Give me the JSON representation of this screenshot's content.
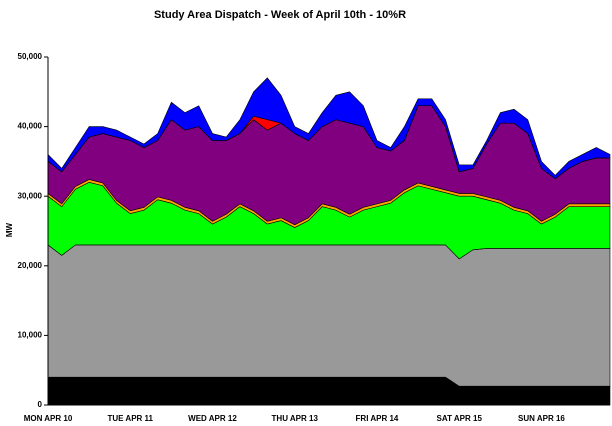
{
  "chart_data": {
    "type": "stacked_area",
    "title": "Study Area Dispatch - Week of April 10th - 10%R",
    "y_label": "MW",
    "categories": [
      "MON APR 10",
      null,
      null,
      null,
      null,
      null,
      "TUE APR 11",
      null,
      null,
      null,
      null,
      null,
      "WED APR 12",
      null,
      null,
      null,
      null,
      null,
      "THU APR 13",
      null,
      null,
      null,
      null,
      null,
      "FRI APR 14",
      null,
      null,
      null,
      null,
      null,
      "SAT APR 15",
      null,
      null,
      null,
      null,
      null,
      "SUN APR 16",
      null,
      null,
      null,
      null,
      null
    ],
    "ylim": [
      0,
      50000
    ],
    "yticks": [
      0,
      {
        "value": 10000,
        "label": "10,000"
      },
      {
        "value": 20000,
        "label": "20,000"
      },
      {
        "value": 30000,
        "label": "30,000"
      },
      {
        "value": 40000,
        "label": "40,000"
      },
      {
        "value": 50000,
        "label": "50,000"
      }
    ],
    "series": [
      {
        "color": "#000000",
        "values": [
          4000,
          4000,
          4000,
          4000,
          4000,
          4000,
          4000,
          4000,
          4000,
          4000,
          4000,
          4000,
          4000,
          4000,
          4000,
          4000,
          4000,
          4000,
          4000,
          4000,
          4000,
          4000,
          4000,
          4000,
          4000,
          4000,
          4000,
          4000,
          4000,
          4000,
          2700,
          2700,
          2700,
          2700,
          2700,
          2700,
          2700,
          2700,
          2700,
          2700,
          2700,
          2700
        ]
      },
      {
        "color": "#999999",
        "values": [
          19000,
          17500,
          19000,
          19000,
          19000,
          19000,
          19000,
          19000,
          19000,
          19000,
          19000,
          19000,
          19000,
          19000,
          19000,
          19000,
          19000,
          19000,
          19000,
          19000,
          19000,
          19000,
          19000,
          19000,
          19000,
          19000,
          19000,
          19000,
          19000,
          19000,
          18300,
          19600,
          19800,
          19800,
          19800,
          19800,
          19800,
          19800,
          19800,
          19800,
          19800,
          19800
        ]
      },
      {
        "color": "#00ff00",
        "values": [
          7000,
          7000,
          8000,
          9000,
          8500,
          6000,
          4500,
          5000,
          6500,
          6000,
          5000,
          4500,
          3000,
          4000,
          5500,
          4500,
          3000,
          3500,
          2500,
          3500,
          5500,
          5000,
          4000,
          5000,
          5500,
          6000,
          7500,
          8500,
          8000,
          7500,
          9000,
          7700,
          7000,
          6500,
          5500,
          5000,
          3500,
          4500,
          6000,
          6000,
          6000,
          6000
        ]
      },
      {
        "color": "#ffa500",
        "values": [
          400,
          400,
          400,
          400,
          400,
          400,
          400,
          400,
          400,
          400,
          400,
          400,
          400,
          400,
          400,
          400,
          400,
          400,
          400,
          400,
          400,
          400,
          400,
          400,
          400,
          400,
          400,
          400,
          400,
          400,
          400,
          400,
          400,
          400,
          400,
          400,
          400,
          400,
          400,
          400,
          400,
          400
        ]
      },
      {
        "color": "#800080",
        "values": [
          4600,
          4600,
          4600,
          6100,
          7100,
          9100,
          10100,
          8600,
          8100,
          11600,
          11100,
          12100,
          11600,
          10600,
          10100,
          13100,
          13100,
          13600,
          13100,
          11100,
          11100,
          12600,
          13100,
          11600,
          8100,
          7100,
          7100,
          11100,
          11600,
          9100,
          3100,
          3600,
          7600,
          11100,
          12100,
          11100,
          7600,
          5100,
          5100,
          6100,
          6600,
          6600
        ]
      },
      {
        "color": "#ff0000",
        "values": [
          0,
          0,
          0,
          0,
          0,
          0,
          0,
          0,
          0,
          0,
          0,
          0,
          0,
          0,
          0,
          500,
          1500,
          0,
          0,
          0,
          0,
          0,
          0,
          0,
          0,
          0,
          0,
          0,
          0,
          0,
          0,
          0,
          0,
          0,
          0,
          0,
          0,
          0,
          0,
          0,
          0,
          0
        ]
      },
      {
        "color": "#0000ff",
        "values": [
          1000,
          500,
          1000,
          1500,
          1000,
          1000,
          500,
          500,
          1000,
          2500,
          2500,
          3000,
          1000,
          500,
          2000,
          3500,
          6000,
          4000,
          1000,
          1000,
          2000,
          3500,
          4500,
          3000,
          1000,
          500,
          2000,
          1000,
          1000,
          1000,
          1000,
          500,
          500,
          1500,
          2000,
          2000,
          1000,
          500,
          1000,
          1000,
          1500,
          500
        ]
      }
    ]
  }
}
